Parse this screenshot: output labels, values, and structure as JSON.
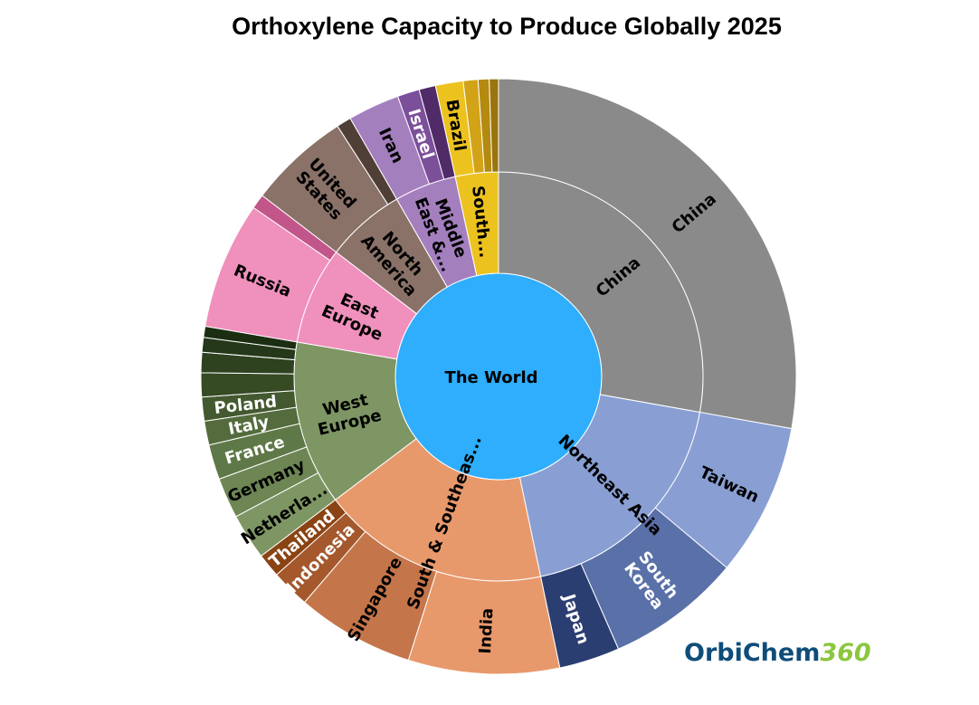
{
  "chart_data": {
    "type": "sunburst",
    "title": "Orthoxylene Capacity to Produce Globally 2025",
    "root": {
      "label": "The World",
      "color": "#2eaefc"
    },
    "regions": [
      {
        "label": "China",
        "lines": [
          "China"
        ],
        "value": 27.8,
        "color": "#8a8a8a",
        "children": [
          {
            "label": "China",
            "lines": [
              "China"
            ],
            "value": 27.8,
            "color": "#8a8a8a"
          }
        ]
      },
      {
        "label": "Northeast Asia",
        "lines": [
          "Northeast Asia"
        ],
        "value": 18.9,
        "color": "#899fd3",
        "children": [
          {
            "label": "Taiwan",
            "lines": [
              "Taiwan"
            ],
            "value": 8.3,
            "color": "#899fd3"
          },
          {
            "label": "South Korea",
            "lines": [
              "South",
              "Korea"
            ],
            "value": 7.3,
            "color": "#5a70a8"
          },
          {
            "label": "Japan",
            "lines": [
              "Japan"
            ],
            "value": 3.3,
            "color": "#2b3e72"
          }
        ]
      },
      {
        "label": "South & Southeast Asia",
        "lines": [
          "South & Southeas..."
        ],
        "value": 18.0,
        "color": "#e8996c",
        "children": [
          {
            "label": "India",
            "lines": [
              "India"
            ],
            "value": 8.2,
            "color": "#e8996c"
          },
          {
            "label": "Singapore",
            "lines": [
              "Singapore"
            ],
            "value": 6.4,
            "color": "#c5754a"
          },
          {
            "label": "Indonesia",
            "lines": [
              "Indonesia"
            ],
            "value": 2.1,
            "color": "#a4582c"
          },
          {
            "label": "Thailand",
            "lines": [
              "Thailand"
            ],
            "value": 1.3,
            "color": "#8a4312"
          }
        ]
      },
      {
        "label": "West Europe",
        "lines": [
          "West",
          "Europe"
        ],
        "value": 13.0,
        "color": "#7e9663",
        "children": [
          {
            "label": "Netherlands",
            "lines": [
              "Netherla..."
            ],
            "value": 2.5,
            "color": "#7e9663"
          },
          {
            "label": "Germany",
            "lines": [
              "Germany"
            ],
            "value": 2.2,
            "color": "#6d8654"
          },
          {
            "label": "France",
            "lines": [
              "France"
            ],
            "value": 1.9,
            "color": "#5f7847"
          },
          {
            "label": "Italy",
            "lines": [
              "Italy"
            ],
            "value": 1.3,
            "color": "#546c3d"
          },
          {
            "label": "Poland",
            "lines": [
              "Poland"
            ],
            "value": 1.3,
            "color": "#44592f"
          },
          {
            "label": "",
            "lines": [],
            "value": 1.3,
            "color": "#364a24"
          },
          {
            "label": "",
            "lines": [],
            "value": 1.1,
            "color": "#2e4220"
          },
          {
            "label": "",
            "lines": [],
            "value": 0.8,
            "color": "#253819"
          },
          {
            "label": "",
            "lines": [],
            "value": 0.6,
            "color": "#1c2e12"
          }
        ]
      },
      {
        "label": "East Europe",
        "lines": [
          "East",
          "Europe"
        ],
        "value": 7.7,
        "color": "#f090bd",
        "children": [
          {
            "label": "Russia",
            "lines": [
              "Russia"
            ],
            "value": 6.9,
            "color": "#f090bd"
          },
          {
            "label": "",
            "lines": [],
            "value": 0.8,
            "color": "#c2568a"
          }
        ]
      },
      {
        "label": "North America",
        "lines": [
          "North",
          "America"
        ],
        "value": 6.3,
        "color": "#8a7268",
        "children": [
          {
            "label": "United States",
            "lines": [
              "United",
              "States"
            ],
            "value": 5.5,
            "color": "#8a7268"
          },
          {
            "label": "",
            "lines": [],
            "value": 0.8,
            "color": "#4f3f37"
          }
        ]
      },
      {
        "label": "Middle East & Africa",
        "lines": [
          "Middle",
          "East &..."
        ],
        "value": 4.9,
        "color": "#a47fbe",
        "children": [
          {
            "label": "Iran",
            "lines": [
              "Iran"
            ],
            "value": 2.8,
            "color": "#a47fbe"
          },
          {
            "label": "Israel",
            "lines": [
              "Israel"
            ],
            "value": 1.2,
            "color": "#7b4f9a"
          },
          {
            "label": "",
            "lines": [],
            "value": 0.9,
            "color": "#502b68"
          }
        ]
      },
      {
        "label": "South America",
        "lines": [
          "South..."
        ],
        "value": 3.4,
        "color": "#ecc21f",
        "children": [
          {
            "label": "Brazil",
            "lines": [
              "Brazil"
            ],
            "value": 1.5,
            "color": "#ecc21f"
          },
          {
            "label": "",
            "lines": [],
            "value": 0.8,
            "color": "#d2a316"
          },
          {
            "label": "",
            "lines": [],
            "value": 0.6,
            "color": "#b48a10"
          },
          {
            "label": "",
            "lines": [],
            "value": 0.5,
            "color": "#9a740c"
          }
        ]
      }
    ]
  },
  "logo": {
    "word": "OrbiChem",
    "number": "360"
  }
}
